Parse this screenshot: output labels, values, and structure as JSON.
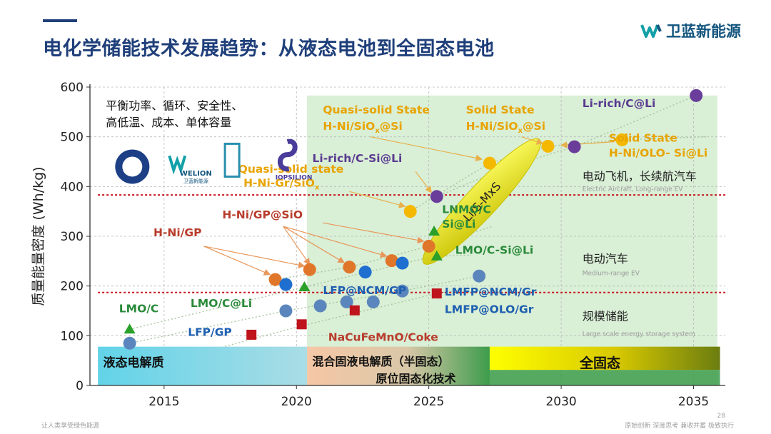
{
  "page": {
    "title": "电化学储能技术发展趋势：从液态电池到全固态电池",
    "brand": "卫蓝新能源",
    "footer_left": "让人类享受绿色能源",
    "footer_right": "原始创新 深度思考 兼收并蓄 极致执行",
    "page_number": "28"
  },
  "colors": {
    "title": "#1f3f7a",
    "brand": "#13557e",
    "orange": "#e0762a",
    "blue": "#1f6fd1",
    "gray_blue": "#5b86bd",
    "purple": "#6a3d9a",
    "gold": "#f5b800",
    "green": "#2aa02a",
    "red": "#c0141c",
    "label_red": "#b83c2c",
    "label_green": "#2a8a3a",
    "label_blue": "#1d5fb0",
    "label_gold": "#e8a400",
    "label_purple": "#5a3a90",
    "reference_line": "#c8141c",
    "green_region": "#d9efd6"
  },
  "chart_data": {
    "type": "scatter",
    "ylabel": "质量能量密度 (Wh/kg)",
    "xlim": [
      2012.2,
      2036.2
    ],
    "ylim": [
      0,
      600
    ],
    "xticks": [
      2015,
      2020,
      2025,
      2030,
      2035
    ],
    "yticks": [
      0,
      100,
      200,
      300,
      400,
      500,
      600
    ],
    "reference_lines": [
      {
        "y": 383,
        "label_cn": "电动飞机，长续航汽车",
        "label_en": "Electric Aircraft, Long-range EV"
      },
      {
        "y": 187,
        "label_cn": "电动汽车",
        "label_en": "Medium-range EV"
      }
    ],
    "extra_category_labels": [
      {
        "cn": "规模储能",
        "en": "Large scale energy storage system",
        "y": 140
      }
    ],
    "requirements_text": [
      "平衡功率、循环、安全性、",
      "高低温、成本、单体容量"
    ],
    "logos": [
      "WELION",
      "卫蓝新能源",
      "IOPSILION"
    ],
    "bands": [
      {
        "label": "液态电解质",
        "x0": 2012.5,
        "x1": 2020.4
      },
      {
        "label": "混合固液电解质（半固态）",
        "x0": 2020.4,
        "x1": 2027.3
      },
      {
        "label": "原位固态化技术",
        "x0": 2020.4,
        "x1": 2036
      },
      {
        "label": "全固态",
        "x0": 2027.3,
        "x1": 2036
      }
    ],
    "series": [
      {
        "name": "H-Ni (orange)",
        "marker": "circle",
        "color": "orange",
        "points": [
          [
            2019.2,
            213
          ],
          [
            2020.5,
            233
          ],
          [
            2022.0,
            238
          ],
          [
            2023.6,
            251
          ],
          [
            2025.0,
            280
          ]
        ]
      },
      {
        "name": "High-Ni / NCM (blue)",
        "marker": "circle",
        "color": "blue",
        "points": [
          [
            2019.6,
            203
          ],
          [
            2022.6,
            228
          ],
          [
            2024.0,
            246
          ]
        ]
      },
      {
        "name": "LFP / LMFP (gray blue)",
        "marker": "circle",
        "color": "gray_blue",
        "points": [
          [
            2013.7,
            85
          ],
          [
            2019.6,
            150
          ],
          [
            2020.9,
            160
          ],
          [
            2021.9,
            168
          ],
          [
            2022.9,
            168
          ],
          [
            2024.0,
            190
          ],
          [
            2026.9,
            220
          ]
        ]
      },
      {
        "name": "Li-rich (purple)",
        "marker": "circle",
        "color": "purple",
        "points": [
          [
            2025.3,
            380
          ],
          [
            2030.5,
            480
          ],
          [
            2035.1,
            583
          ]
        ]
      },
      {
        "name": "Quasi/Solid state (gold)",
        "marker": "circle",
        "color": "gold",
        "points": [
          [
            2024.3,
            350
          ],
          [
            2027.3,
            447
          ],
          [
            2029.5,
            481
          ],
          [
            2032.3,
            494
          ]
        ]
      },
      {
        "name": "LMO / LNMO (green)",
        "marker": "triangle",
        "color": "green",
        "points": [
          [
            2013.7,
            113
          ],
          [
            2020.3,
            198
          ],
          [
            2025.2,
            310
          ],
          [
            2025.3,
            260
          ]
        ]
      },
      {
        "name": "NaCuFeMnO/Coke (red)",
        "marker": "square",
        "color": "red",
        "points": [
          [
            2018.3,
            102
          ],
          [
            2020.2,
            123
          ],
          [
            2022.2,
            151
          ],
          [
            2025.3,
            185
          ]
        ]
      }
    ],
    "ellipse": {
      "label": "Li/S-MxS",
      "cx": 2027.0,
      "cy": 370,
      "rx_years": 3.2,
      "ry_wh": 32,
      "angle_deg": -47
    },
    "labels": [
      {
        "text": "H-Ni/GP",
        "x": 2014.6,
        "y": 300,
        "color": "label_red"
      },
      {
        "text": "H-Ni/GP@SiO",
        "x": 2017.2,
        "y": 336,
        "color": "label_red"
      },
      {
        "text": "LMO/C",
        "x": 2013.3,
        "y": 147,
        "color": "label_green"
      },
      {
        "text": "LMO/C@Li",
        "x": 2016.0,
        "y": 158,
        "color": "label_green"
      },
      {
        "text": "LFP/GP",
        "x": 2015.9,
        "y": 100,
        "color": "label_blue"
      },
      {
        "text": "LFP@NCM/GP",
        "x": 2021.0,
        "y": 184,
        "color": "label_blue"
      },
      {
        "text": "LMFP@NCM/Gr",
        "x": 2025.6,
        "y": 181,
        "color": "label_blue"
      },
      {
        "text": "LMFP@OLO/Gr",
        "x": 2025.6,
        "y": 146,
        "color": "label_blue"
      },
      {
        "text": "NaCuFeMnO/Coke",
        "x": 2021.2,
        "y": 90,
        "color": "label_red"
      },
      {
        "text": "LNMO/C",
        "x": 2025.5,
        "y": 347,
        "color": "label_green"
      },
      {
        "text": "Si@Li",
        "x": 2025.5,
        "y": 317,
        "color": "label_green"
      },
      {
        "text": "LMO/C-Si@Li",
        "x": 2026.0,
        "y": 265,
        "color": "label_green"
      },
      {
        "text": "Quasi-solid state",
        "x": 2017.8,
        "y": 428,
        "color": "label_gold"
      },
      {
        "text": "H-Ni-Gr/SiO",
        "x": 2018.0,
        "y": 400,
        "color": "label_gold",
        "sub": "x"
      },
      {
        "text": "Quasi-solid State",
        "x": 2021.0,
        "y": 547,
        "color": "label_gold"
      },
      {
        "text": "H-Ni/SiO",
        "x": 2021.0,
        "y": 514,
        "color": "label_gold",
        "sub": "x",
        "tail": "@Si"
      },
      {
        "text": "Solid State",
        "x": 2026.4,
        "y": 547,
        "color": "label_gold"
      },
      {
        "text": "H-Ni/SiO",
        "x": 2026.4,
        "y": 514,
        "color": "label_gold",
        "sub": "x",
        "tail": "@Si"
      },
      {
        "text": "Solid State",
        "x": 2031.8,
        "y": 490,
        "color": "label_gold"
      },
      {
        "text": "H-Ni/OLO- Si@Li",
        "x": 2031.8,
        "y": 460,
        "color": "label_gold"
      },
      {
        "text": "Li-rich/C-Si@Li",
        "x": 2020.6,
        "y": 449,
        "color": "label_purple"
      },
      {
        "text": "Li-rich/C@Li",
        "x": 2030.8,
        "y": 560,
        "color": "label_purple"
      }
    ]
  }
}
